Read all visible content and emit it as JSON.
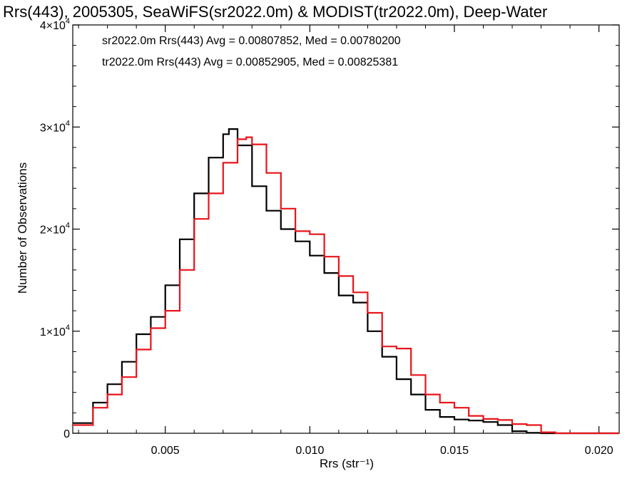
{
  "chart_data": {
    "type": "line",
    "title": "Rrs(443), 2005305, SeaWiFS(sr2022.0m) & MODIST(tr2022.0m), Deep-Water",
    "xlabel": "Rrs (str⁻¹)",
    "ylabel": "Number of Observations",
    "xlim": [
      0.0018,
      0.0207
    ],
    "ylim": [
      0,
      40000
    ],
    "x_ticks": [
      0.005,
      0.01,
      0.015,
      0.02
    ],
    "x_tick_labels": [
      "0.005",
      "0.010",
      "0.015",
      "0.020"
    ],
    "y_ticks": [
      0,
      10000,
      20000,
      30000,
      40000
    ],
    "y_tick_labels": [
      {
        "mantissa": "0",
        "exp": ""
      },
      {
        "mantissa": "1×10",
        "exp": "4"
      },
      {
        "mantissa": "2×10",
        "exp": "4"
      },
      {
        "mantissa": "3×10",
        "exp": "4"
      },
      {
        "mantissa": "4×10",
        "exp": "4"
      }
    ],
    "grid": false,
    "legend_position": "top-left",
    "annotations": [
      {
        "text": "sr2022.0m Rrs(443) Avg = 0.00807852, Med = 0.00780200",
        "color": "#000000"
      },
      {
        "text": "tr2022.0m Rrs(443) Avg = 0.00852905, Med = 0.00825381",
        "color": "#e8141a"
      }
    ],
    "series": [
      {
        "name": "sr2022.0m",
        "color": "#000000",
        "x": [
          0.0018,
          0.0025,
          0.003,
          0.0035,
          0.004,
          0.0045,
          0.005,
          0.0055,
          0.006,
          0.0065,
          0.007,
          0.0072,
          0.0075,
          0.008,
          0.0085,
          0.009,
          0.0095,
          0.01,
          0.0105,
          0.011,
          0.0115,
          0.012,
          0.0125,
          0.013,
          0.0135,
          0.014,
          0.0145,
          0.015,
          0.0155,
          0.016,
          0.0165,
          0.017,
          0.0175,
          0.018,
          0.0207
        ],
        "y": [
          1000,
          3000,
          4800,
          7000,
          9700,
          11400,
          14500,
          19000,
          23500,
          27000,
          29300,
          29800,
          28200,
          24200,
          21800,
          20000,
          18800,
          17400,
          15700,
          13500,
          12800,
          10000,
          7500,
          5300,
          3800,
          2300,
          1600,
          1350,
          1250,
          1100,
          800,
          200,
          50,
          0,
          0
        ]
      },
      {
        "name": "tr2022.0m",
        "color": "#e8141a",
        "x": [
          0.0018,
          0.0025,
          0.003,
          0.0035,
          0.004,
          0.0045,
          0.005,
          0.0055,
          0.006,
          0.0065,
          0.007,
          0.0075,
          0.0078,
          0.008,
          0.0085,
          0.009,
          0.0095,
          0.01,
          0.0105,
          0.011,
          0.0115,
          0.012,
          0.0125,
          0.013,
          0.0135,
          0.014,
          0.0145,
          0.015,
          0.0155,
          0.016,
          0.0165,
          0.017,
          0.0175,
          0.018,
          0.0185,
          0.0207
        ],
        "y": [
          800,
          2500,
          3800,
          5500,
          8200,
          10300,
          12000,
          16000,
          21000,
          23500,
          26500,
          28800,
          29000,
          28300,
          25500,
          22000,
          19800,
          19500,
          17300,
          15400,
          13800,
          11800,
          8500,
          8300,
          5700,
          3800,
          3000,
          2500,
          1700,
          1400,
          1300,
          900,
          800,
          100,
          0,
          0
        ]
      }
    ]
  }
}
